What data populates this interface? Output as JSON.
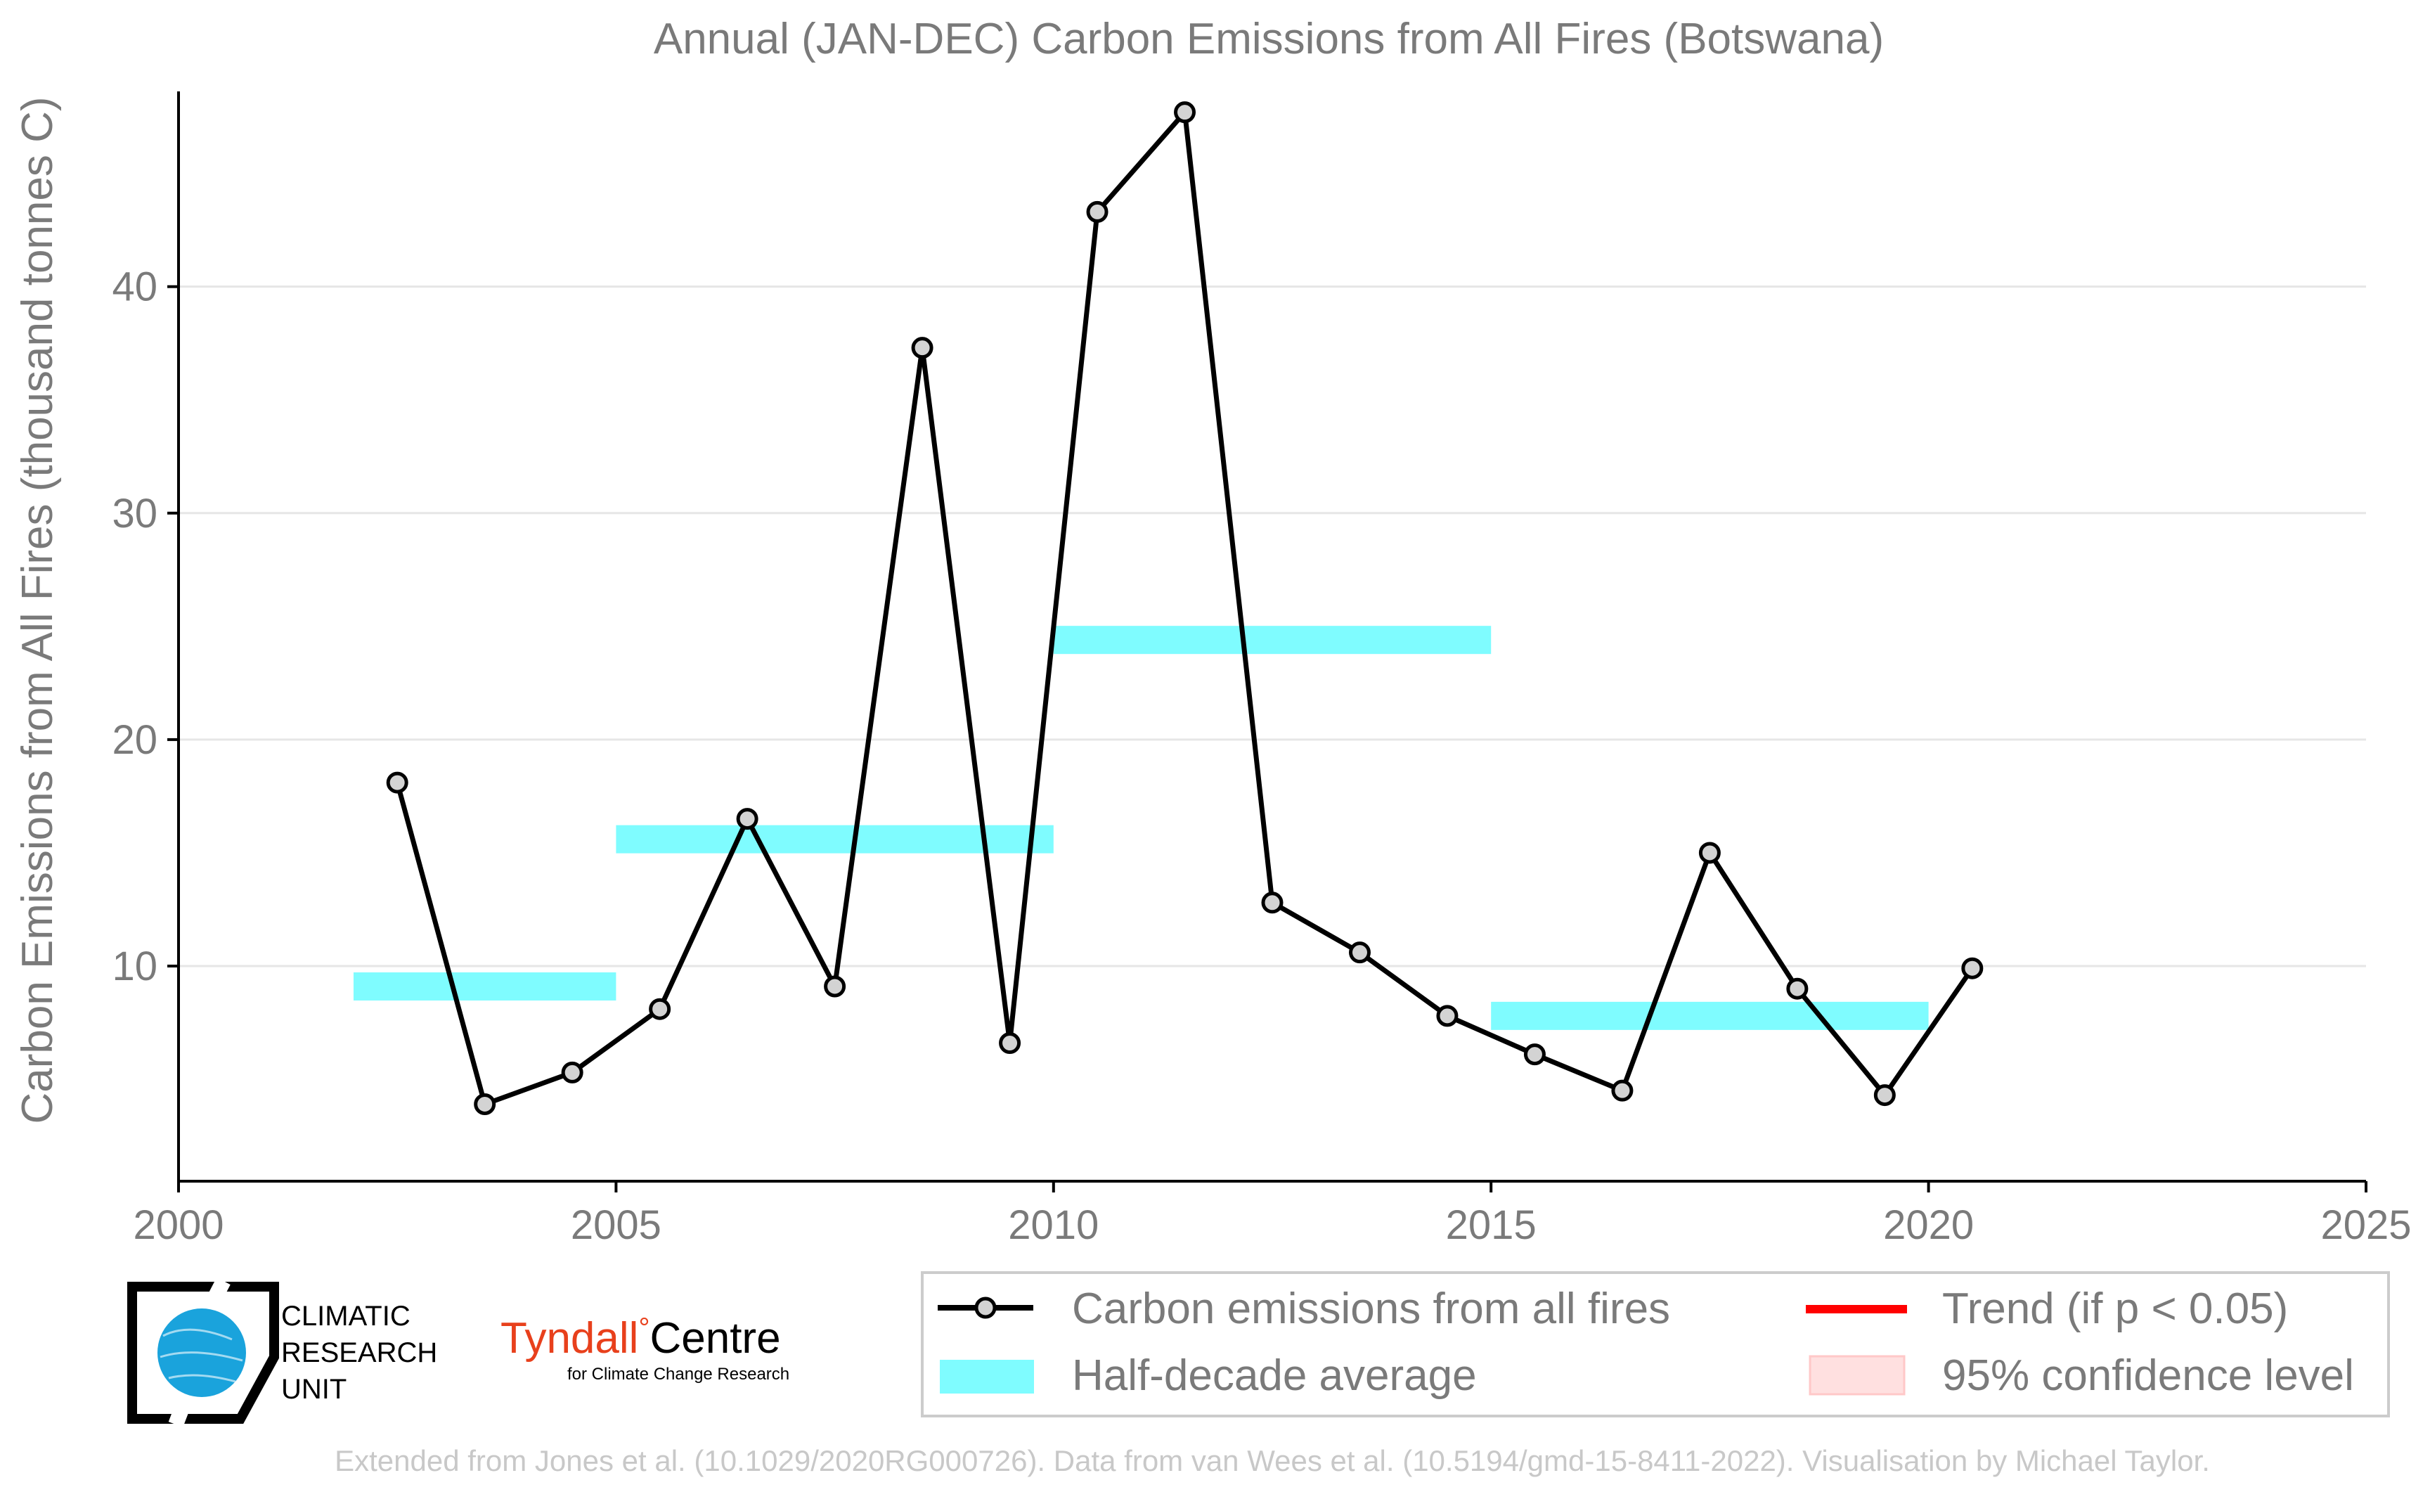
{
  "colors": {
    "line": "#000000",
    "marker_fill": "#d3d3d3",
    "half_decade": "#7ffcff",
    "trend": "#ff0000",
    "confidence": "#ffe0e0",
    "grid": "#e6e6e6",
    "text": "#7a7a7a",
    "credit": "#c8c8c8",
    "cru_blue": "#1aa3dc",
    "tyndall_red": "#e8401c"
  },
  "chart_data": {
    "type": "line",
    "title": "Annual (JAN-DEC) Carbon Emissions from All Fires (Botswana)",
    "xlabel": "",
    "ylabel": "Carbon Emissions from All Fires (thousand tonnes C)",
    "xlim": [
      2000,
      2025
    ],
    "ylim": [
      0.5,
      48
    ],
    "xticks": [
      2000,
      2005,
      2010,
      2015,
      2020,
      2025
    ],
    "yticks": [
      10,
      20,
      30,
      40
    ],
    "grid": true,
    "legend_position": "bottom",
    "series": [
      {
        "name": "Carbon emissions from all fires",
        "x": [
          2002.5,
          2003.5,
          2004.5,
          2005.5,
          2006.5,
          2007.5,
          2008.5,
          2009.5,
          2010.5,
          2011.5,
          2012.5,
          2013.5,
          2014.5,
          2015.5,
          2016.5,
          2017.5,
          2018.5,
          2019.5,
          2020.5
        ],
        "y": [
          18.1,
          3.9,
          5.3,
          8.1,
          16.5,
          9.1,
          37.3,
          6.6,
          43.3,
          47.7,
          12.8,
          10.6,
          7.8,
          6.1,
          4.5,
          15.0,
          9.0,
          4.3,
          9.9
        ]
      }
    ],
    "half_decade_averages": [
      {
        "start": 2002,
        "end": 2005,
        "value": 9.1
      },
      {
        "start": 2005,
        "end": 2010,
        "value": 15.6
      },
      {
        "start": 2010,
        "end": 2015,
        "value": 24.4
      },
      {
        "start": 2015,
        "end": 2020,
        "value": 7.8
      }
    ],
    "legend": [
      {
        "label": "Carbon emissions from all fires",
        "kind": "line-marker"
      },
      {
        "label": "Trend (if p < 0.05)",
        "kind": "trend"
      },
      {
        "label": "Half-decade average",
        "kind": "band"
      },
      {
        "label": "95% confidence level",
        "kind": "confidence"
      }
    ]
  },
  "logos": {
    "cru_lines": [
      "CLIMATIC",
      "RESEARCH",
      "UNIT"
    ],
    "tyndall_name": "Tyndall",
    "tyndall_degree": "°",
    "tyndall_centre": "Centre",
    "tyndall_sub": "for Climate Change Research"
  },
  "credit": "Extended from Jones et al. (10.1029/2020RG000726). Data from van Wees et al. (10.5194/gmd-15-8411-2022). Visualisation by Michael Taylor."
}
